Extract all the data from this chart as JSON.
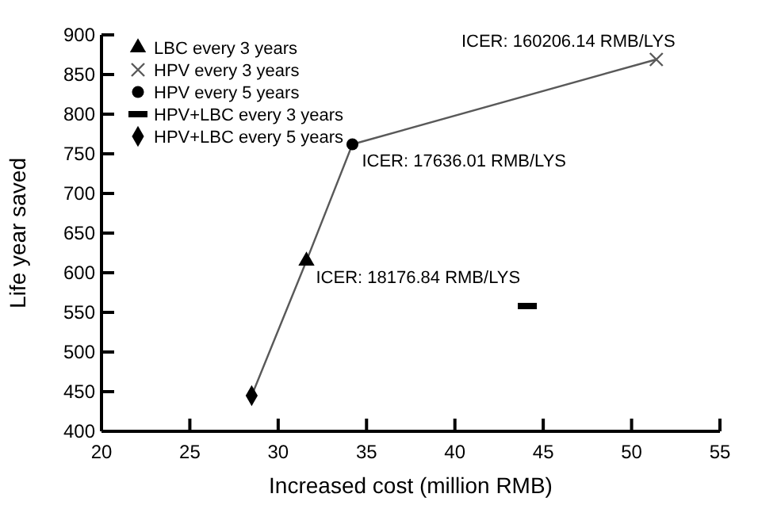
{
  "chart_data": {
    "type": "scatter",
    "xlabel": "Increased cost (million RMB)",
    "ylabel": "Life year saved",
    "xlim": [
      20,
      55
    ],
    "xticks": [
      20,
      25,
      30,
      35,
      40,
      45,
      50,
      55
    ],
    "ylim": [
      400,
      900
    ],
    "yticks": [
      400,
      450,
      500,
      550,
      600,
      650,
      700,
      750,
      800,
      850,
      900
    ],
    "grid": false,
    "legend": "top left",
    "series": [
      {
        "type": "line",
        "color": "#595959",
        "x": [
          28.5,
          31.6,
          34.2,
          51.4
        ],
        "values": [
          445,
          615,
          762,
          869
        ],
        "marker": "none"
      },
      {
        "name": "LBC every 3 years",
        "color": "#000000",
        "marker": "triangle",
        "x": [
          31.6
        ],
        "values": [
          615
        ]
      },
      {
        "name": "HPV every 3 years",
        "color": "#595959",
        "marker": "cross",
        "x": [
          51.4
        ],
        "values": [
          869
        ]
      },
      {
        "name": "HPV every 5 years",
        "color": "#000000",
        "marker": "circle",
        "x": [
          34.2
        ],
        "values": [
          762
        ]
      },
      {
        "name": "HPV+LBC every 3 years",
        "color": "#000000",
        "marker": "square",
        "x": [
          44.1
        ],
        "values": [
          558
        ]
      },
      {
        "name": "HPV+LBC every 5 years",
        "color": "#000000",
        "marker": "diamond",
        "x": [
          28.5
        ],
        "values": [
          445
        ]
      }
    ],
    "annotations": [
      {
        "text": "ICER: 160206.14 RMB/LYS",
        "x": 51.4,
        "y": 869
      },
      {
        "text": "ICER: 17636.01 RMB/LYS",
        "x": 34.2,
        "y": 762
      },
      {
        "text": "ICER: 18176.84 RMB/LYS",
        "x": 31.6,
        "y": 615
      }
    ]
  }
}
